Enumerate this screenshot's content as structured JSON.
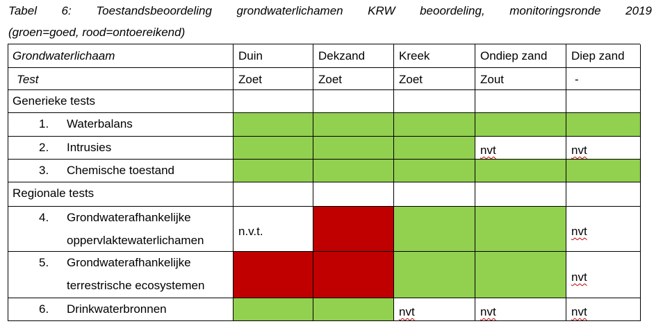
{
  "caption": [
    "Tabel 6: Toestandsbeoordeling grondwaterlichamen KRW beoordeling, monitoringsronde 2019",
    "(groen=goed, rood=ontoereikend)"
  ],
  "table": {
    "header": {
      "label": "Grondwaterlichaam",
      "columns": [
        "Duin",
        "Dekzand",
        "Kreek",
        "Ondiep zand",
        "Diep zand"
      ]
    },
    "subheader": {
      "label": "Test",
      "columns": [
        "Zoet",
        "Zoet",
        "Zoet",
        "Zout",
        "-"
      ]
    },
    "rows": [
      {
        "section": "Generieke tests"
      },
      {
        "number": "1.",
        "label": [
          "Waterbalans"
        ],
        "cells": [
          {
            "fill": "#92d050"
          },
          {
            "fill": "#92d050"
          },
          {
            "fill": "#92d050"
          },
          {
            "fill": "#92d050"
          },
          {
            "fill": "#92d050"
          }
        ]
      },
      {
        "number": "2.",
        "label": [
          "Intrusies"
        ],
        "cells": [
          {
            "fill": "#92d050"
          },
          {
            "fill": "#92d050"
          },
          {
            "fill": "#92d050"
          },
          {
            "text": "nvt"
          },
          {
            "text": "nvt"
          }
        ]
      },
      {
        "number": "3.",
        "label": [
          "Chemische toestand"
        ],
        "cells": [
          {
            "fill": "#92d050"
          },
          {
            "fill": "#92d050"
          },
          {
            "fill": "#92d050"
          },
          {
            "fill": "#92d050"
          },
          {
            "fill": "#92d050"
          }
        ]
      },
      {
        "section": "Regionale tests"
      },
      {
        "number": "4.",
        "label": [
          "Grondwaterafhankelijke",
          "oppervlaktewaterlichamen"
        ],
        "cells": [
          {
            "text": "n.v.t."
          },
          {
            "fill": "#c00000"
          },
          {
            "fill": "#92d050"
          },
          {
            "fill": "#92d050"
          },
          {
            "text": "nvt"
          }
        ]
      },
      {
        "number": "5.",
        "label": [
          "Grondwaterafhankelijke",
          "terrestrische ecosystemen"
        ],
        "cells": [
          {
            "fill": "#c00000"
          },
          {
            "fill": "#c00000"
          },
          {
            "fill": "#92d050"
          },
          {
            "fill": "#92d050"
          },
          {
            "text": "nvt"
          }
        ]
      },
      {
        "number": "6.",
        "label": [
          "Drinkwaterbronnen"
        ],
        "cells": [
          {
            "fill": "#92d050"
          },
          {
            "fill": "#92d050"
          },
          {
            "text": "nvt"
          },
          {
            "text": "nvt"
          },
          {
            "text": "nvt"
          }
        ]
      }
    ]
  }
}
